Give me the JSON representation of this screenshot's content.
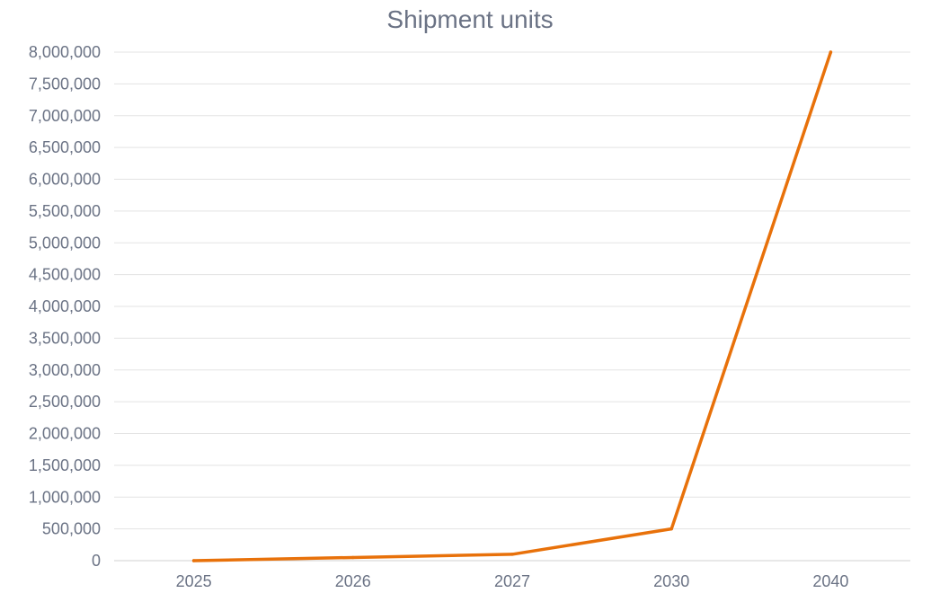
{
  "chart_data": {
    "type": "line",
    "title": "Shipment units",
    "xlabel": "",
    "ylabel": "",
    "categories": [
      "2025",
      "2026",
      "2027",
      "2030",
      "2040"
    ],
    "series": [
      {
        "values": [
          0,
          50000,
          100000,
          500000,
          8000000
        ]
      }
    ],
    "ylim": [
      0,
      8000000
    ],
    "y_tick_labels": [
      "0",
      "500,000",
      "1,000,000",
      "1,500,000",
      "2,000,000",
      "2,500,000",
      "3,000,000",
      "3,500,000",
      "4,000,000",
      "4,500,000",
      "5,000,000",
      "5,500,000",
      "6,000,000",
      "6,500,000",
      "7,000,000",
      "7,500,000",
      "8,000,000"
    ],
    "grid": true,
    "legend": "none"
  },
  "colors": {
    "series": "#e8710a",
    "text": "#6b7385",
    "grid": "#e3e3e3"
  }
}
